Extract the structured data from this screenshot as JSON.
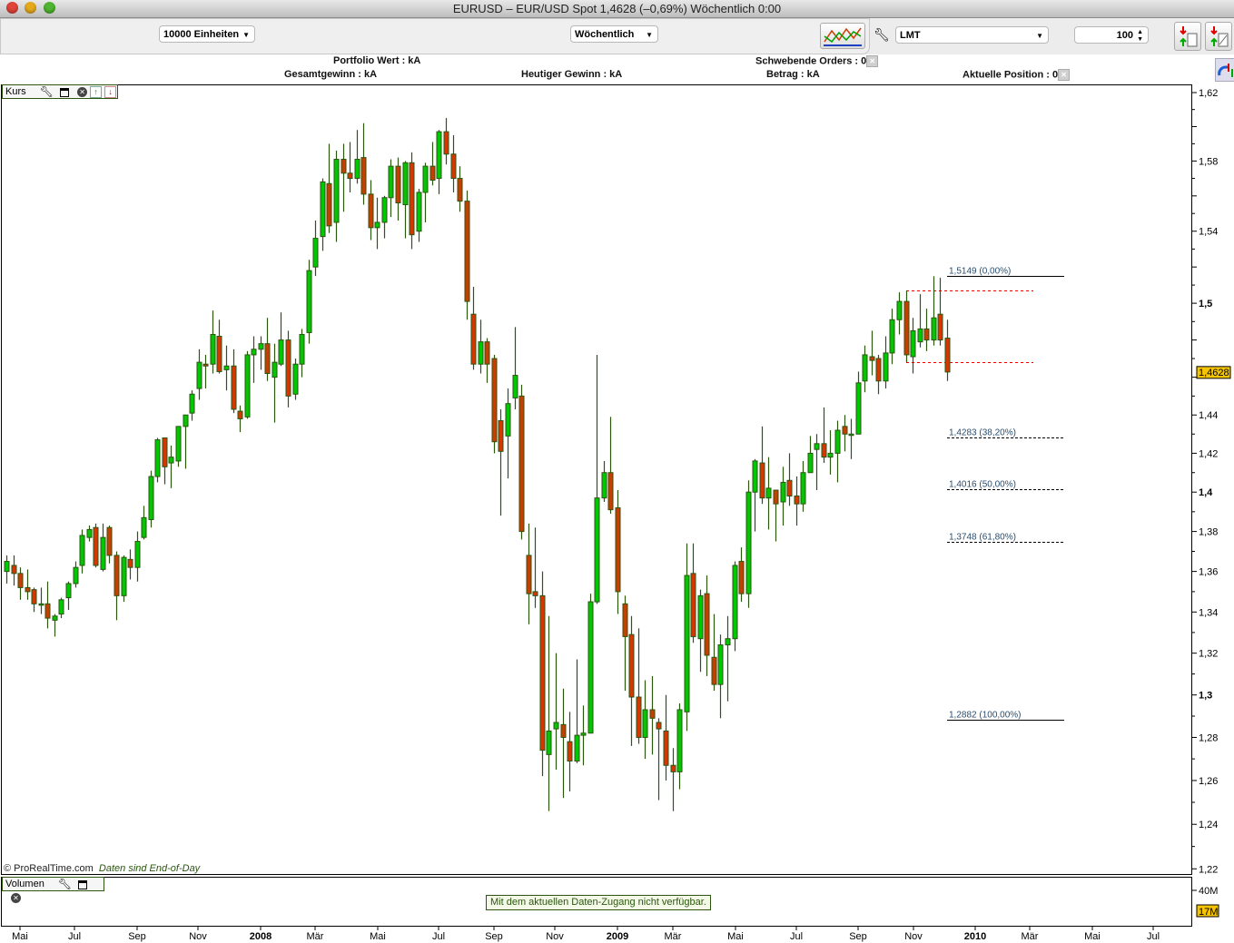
{
  "window": {
    "title": "EURUSD – EUR/USD Spot    1,4628 (–0,69%)    Wöchentlich  0:00"
  },
  "toolbar": {
    "units_select": "10000 Einheiten",
    "period_select": "Wöchentlich",
    "order_type_select": "LMT",
    "quantity_value": "100"
  },
  "info": {
    "portfolio": "Portfolio Wert : kA",
    "pending_orders": "Schwebende Orders : 0",
    "total_gain": "Gesamtgewinn : kA",
    "today_gain": "Heutiger Gewinn : kA",
    "amount": "Betrag : kA",
    "position": "Aktuelle Position : 0"
  },
  "price_panel": {
    "label": "Kurs",
    "copyright": "© ProRealTime.com",
    "eod_note": "Daten sind End-of-Day"
  },
  "volume_panel": {
    "label": "Volumen",
    "message": "Mit dem aktuellen Daten-Zugang nicht verfügbar.",
    "axis_label": "40M",
    "current_badge": "17M"
  },
  "chart_data": {
    "type": "candlestick",
    "symbol": "EURUSD",
    "period": "Wöchentlich",
    "y_scale": "log",
    "ylim": [
      1.22,
      1.62
    ],
    "y_ticks": [
      "1,62",
      "1,58",
      "1,54",
      "1,5",
      "1,44",
      "1,42",
      "1,4",
      "1,38",
      "1,36",
      "1,34",
      "1,32",
      "1,3",
      "1,28",
      "1,26",
      "1,24",
      "1,22"
    ],
    "y_ticks_bold": [
      "1,5",
      "1,4",
      "1,3"
    ],
    "x_ticks": [
      "Mai",
      "Jul",
      "Sep",
      "Nov",
      "2008",
      "Mär",
      "Mai",
      "Jul",
      "Sep",
      "Nov",
      "2009",
      "Mär",
      "Mai",
      "Jul",
      "Sep",
      "Nov",
      "2010",
      "Mär",
      "Mai",
      "Jul"
    ],
    "x_ticks_bold": [
      "2008",
      "2009",
      "2010"
    ],
    "current_price": 1.4628,
    "current_price_label": "1,4628",
    "colors": {
      "up": "#00c800",
      "down": "#d03a00",
      "wick": "#2b5510",
      "badge": "#f5c400",
      "order_line": "#e00000"
    },
    "ohlc_fields": [
      "open",
      "high",
      "low",
      "close"
    ],
    "ohlc": [
      [
        1.36,
        1.368,
        1.354,
        1.365
      ],
      [
        1.363,
        1.368,
        1.353,
        1.359
      ],
      [
        1.359,
        1.362,
        1.346,
        1.352
      ],
      [
        1.352,
        1.361,
        1.346,
        1.35
      ],
      [
        1.351,
        1.352,
        1.34,
        1.344
      ],
      [
        1.344,
        1.352,
        1.339,
        1.344
      ],
      [
        1.344,
        1.355,
        1.332,
        1.337
      ],
      [
        1.336,
        1.339,
        1.328,
        1.338
      ],
      [
        1.339,
        1.347,
        1.337,
        1.346
      ],
      [
        1.347,
        1.355,
        1.341,
        1.354
      ],
      [
        1.354,
        1.365,
        1.352,
        1.362
      ],
      [
        1.363,
        1.381,
        1.359,
        1.378
      ],
      [
        1.377,
        1.383,
        1.375,
        1.381
      ],
      [
        1.382,
        1.384,
        1.362,
        1.363
      ],
      [
        1.361,
        1.384,
        1.36,
        1.377
      ],
      [
        1.382,
        1.383,
        1.364,
        1.368
      ],
      [
        1.368,
        1.37,
        1.336,
        1.348
      ],
      [
        1.348,
        1.368,
        1.345,
        1.367
      ],
      [
        1.366,
        1.371,
        1.356,
        1.362
      ],
      [
        1.362,
        1.38,
        1.355,
        1.375
      ],
      [
        1.377,
        1.393,
        1.376,
        1.387
      ],
      [
        1.386,
        1.411,
        1.382,
        1.408
      ],
      [
        1.408,
        1.428,
        1.405,
        1.427
      ],
      [
        1.428,
        1.428,
        1.404,
        1.413
      ],
      [
        1.415,
        1.424,
        1.402,
        1.418
      ],
      [
        1.416,
        1.434,
        1.413,
        1.434
      ],
      [
        1.434,
        1.44,
        1.412,
        1.44
      ],
      [
        1.441,
        1.453,
        1.437,
        1.451
      ],
      [
        1.454,
        1.475,
        1.448,
        1.468
      ],
      [
        1.467,
        1.472,
        1.454,
        1.466
      ],
      [
        1.467,
        1.496,
        1.462,
        1.483
      ],
      [
        1.482,
        1.491,
        1.462,
        1.463
      ],
      [
        1.464,
        1.477,
        1.453,
        1.466
      ],
      [
        1.466,
        1.475,
        1.441,
        1.443
      ],
      [
        1.442,
        1.445,
        1.431,
        1.438
      ],
      [
        1.439,
        1.474,
        1.438,
        1.472
      ],
      [
        1.472,
        1.482,
        1.457,
        1.475
      ],
      [
        1.475,
        1.482,
        1.464,
        1.478
      ],
      [
        1.478,
        1.492,
        1.458,
        1.462
      ],
      [
        1.46,
        1.478,
        1.436,
        1.468
      ],
      [
        1.467,
        1.495,
        1.466,
        1.48
      ],
      [
        1.48,
        1.485,
        1.444,
        1.45
      ],
      [
        1.451,
        1.47,
        1.448,
        1.467
      ],
      [
        1.467,
        1.486,
        1.46,
        1.483
      ],
      [
        1.484,
        1.524,
        1.478,
        1.518
      ],
      [
        1.52,
        1.546,
        1.515,
        1.536
      ],
      [
        1.537,
        1.57,
        1.529,
        1.568
      ],
      [
        1.567,
        1.59,
        1.539,
        1.543
      ],
      [
        1.545,
        1.586,
        1.534,
        1.581
      ],
      [
        1.581,
        1.59,
        1.551,
        1.573
      ],
      [
        1.573,
        1.591,
        1.562,
        1.57
      ],
      [
        1.57,
        1.598,
        1.567,
        1.581
      ],
      [
        1.582,
        1.602,
        1.555,
        1.561
      ],
      [
        1.561,
        1.569,
        1.535,
        1.542
      ],
      [
        1.542,
        1.559,
        1.53,
        1.545
      ],
      [
        1.545,
        1.56,
        1.536,
        1.559
      ],
      [
        1.559,
        1.581,
        1.548,
        1.577
      ],
      [
        1.577,
        1.582,
        1.546,
        1.556
      ],
      [
        1.555,
        1.58,
        1.536,
        1.579
      ],
      [
        1.579,
        1.585,
        1.53,
        1.538
      ],
      [
        1.54,
        1.564,
        1.534,
        1.562
      ],
      [
        1.562,
        1.579,
        1.545,
        1.577
      ],
      [
        1.577,
        1.591,
        1.566,
        1.569
      ],
      [
        1.57,
        1.598,
        1.561,
        1.597
      ],
      [
        1.597,
        1.605,
        1.578,
        1.584
      ],
      [
        1.584,
        1.595,
        1.562,
        1.57
      ],
      [
        1.57,
        1.577,
        1.551,
        1.557
      ],
      [
        1.557,
        1.563,
        1.491,
        1.501
      ],
      [
        1.494,
        1.509,
        1.464,
        1.467
      ],
      [
        1.467,
        1.491,
        1.462,
        1.479
      ],
      [
        1.479,
        1.481,
        1.457,
        1.467
      ],
      [
        1.47,
        1.472,
        1.42,
        1.426
      ],
      [
        1.437,
        1.443,
        1.388,
        1.421
      ],
      [
        1.429,
        1.454,
        1.407,
        1.446
      ],
      [
        1.449,
        1.487,
        1.443,
        1.461
      ],
      [
        1.45,
        1.456,
        1.376,
        1.38
      ],
      [
        1.368,
        1.384,
        1.334,
        1.349
      ],
      [
        1.35,
        1.382,
        1.342,
        1.348
      ],
      [
        1.348,
        1.36,
        1.262,
        1.274
      ],
      [
        1.272,
        1.338,
        1.246,
        1.283
      ],
      [
        1.284,
        1.32,
        1.265,
        1.287
      ],
      [
        1.286,
        1.303,
        1.252,
        1.28
      ],
      [
        1.278,
        1.292,
        1.255,
        1.269
      ],
      [
        1.269,
        1.317,
        1.268,
        1.281
      ],
      [
        1.281,
        1.295,
        1.267,
        1.282
      ],
      [
        1.282,
        1.349,
        1.282,
        1.345
      ],
      [
        1.345,
        1.472,
        1.344,
        1.397
      ],
      [
        1.397,
        1.416,
        1.395,
        1.41
      ],
      [
        1.41,
        1.439,
        1.389,
        1.391
      ],
      [
        1.392,
        1.401,
        1.339,
        1.35
      ],
      [
        1.344,
        1.348,
        1.302,
        1.328
      ],
      [
        1.329,
        1.338,
        1.276,
        1.299
      ],
      [
        1.299,
        1.332,
        1.277,
        1.28
      ],
      [
        1.28,
        1.307,
        1.27,
        1.293
      ],
      [
        1.293,
        1.309,
        1.272,
        1.289
      ],
      [
        1.287,
        1.289,
        1.251,
        1.284
      ],
      [
        1.283,
        1.3,
        1.26,
        1.267
      ],
      [
        1.267,
        1.275,
        1.246,
        1.264
      ],
      [
        1.264,
        1.296,
        1.256,
        1.293
      ],
      [
        1.292,
        1.374,
        1.283,
        1.358
      ],
      [
        1.359,
        1.374,
        1.325,
        1.328
      ],
      [
        1.327,
        1.351,
        1.311,
        1.348
      ],
      [
        1.349,
        1.358,
        1.309,
        1.319
      ],
      [
        1.318,
        1.339,
        1.302,
        1.305
      ],
      [
        1.305,
        1.329,
        1.289,
        1.324
      ],
      [
        1.324,
        1.338,
        1.297,
        1.327
      ],
      [
        1.327,
        1.365,
        1.321,
        1.363
      ],
      [
        1.365,
        1.372,
        1.345,
        1.349
      ],
      [
        1.349,
        1.406,
        1.342,
        1.4
      ],
      [
        1.4,
        1.417,
        1.38,
        1.416
      ],
      [
        1.415,
        1.434,
        1.394,
        1.397
      ],
      [
        1.397,
        1.418,
        1.381,
        1.402
      ],
      [
        1.401,
        1.401,
        1.375,
        1.394
      ],
      [
        1.395,
        1.413,
        1.383,
        1.405
      ],
      [
        1.406,
        1.42,
        1.393,
        1.398
      ],
      [
        1.398,
        1.408,
        1.383,
        1.394
      ],
      [
        1.394,
        1.416,
        1.39,
        1.41
      ],
      [
        1.41,
        1.429,
        1.41,
        1.42
      ],
      [
        1.422,
        1.43,
        1.401,
        1.425
      ],
      [
        1.425,
        1.444,
        1.415,
        1.418
      ],
      [
        1.418,
        1.432,
        1.409,
        1.42
      ],
      [
        1.42,
        1.437,
        1.405,
        1.432
      ],
      [
        1.434,
        1.44,
        1.421,
        1.43
      ],
      [
        1.43,
        1.438,
        1.417,
        1.43
      ],
      [
        1.43,
        1.463,
        1.43,
        1.457
      ],
      [
        1.458,
        1.477,
        1.452,
        1.472
      ],
      [
        1.471,
        1.485,
        1.461,
        1.469
      ],
      [
        1.47,
        1.472,
        1.451,
        1.458
      ],
      [
        1.458,
        1.482,
        1.454,
        1.473
      ],
      [
        1.473,
        1.497,
        1.467,
        1.491
      ],
      [
        1.491,
        1.506,
        1.483,
        1.501
      ],
      [
        1.501,
        1.507,
        1.468,
        1.472
      ],
      [
        1.471,
        1.492,
        1.462,
        1.485
      ],
      [
        1.479,
        1.505,
        1.476,
        1.486
      ],
      [
        1.486,
        1.497,
        1.474,
        1.48
      ],
      [
        1.48,
        1.5149,
        1.477,
        1.492
      ],
      [
        1.494,
        1.514,
        1.477,
        1.48
      ],
      [
        1.481,
        1.491,
        1.458,
        1.4628
      ]
    ],
    "fibonacci_levels": [
      {
        "value": 1.5149,
        "label": "1,5149 (0,00%)",
        "style": "solid"
      },
      {
        "value": 1.4283,
        "label": "1,4283 (38,20%)",
        "style": "dashed"
      },
      {
        "value": 1.4016,
        "label": "1,4016 (50,00%)",
        "style": "dashed"
      },
      {
        "value": 1.3748,
        "label": "1,3748 (61,80%)",
        "style": "dashed"
      },
      {
        "value": 1.2882,
        "label": "1,2882 (100,00%)",
        "style": "solid"
      }
    ],
    "order_lines": [
      1.507,
      1.468
    ]
  }
}
